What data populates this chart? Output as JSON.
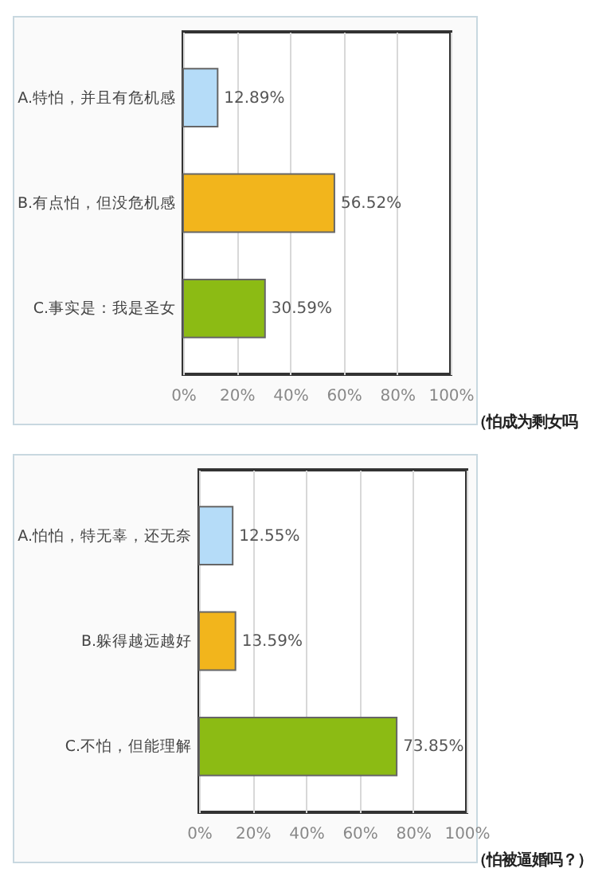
{
  "chart_data": [
    {
      "type": "bar",
      "orientation": "horizontal",
      "categories": [
        "A.特怕，并且有危机感",
        "B.有点怕，但没危机感",
        "C.事实是：我是圣女"
      ],
      "values": [
        12.89,
        56.52,
        30.59
      ],
      "colors": [
        "#b5dcf8",
        "#f2b51c",
        "#8cbb14"
      ],
      "value_labels": [
        "12.89%",
        "56.52%",
        "30.59%"
      ],
      "xlim": [
        0,
        100
      ],
      "xticks": [
        {
          "value": 0,
          "label": "0%"
        },
        {
          "value": 20,
          "label": "20%"
        },
        {
          "value": 40,
          "label": "40%"
        },
        {
          "value": 60,
          "label": "60%"
        },
        {
          "value": 80,
          "label": "80%"
        },
        {
          "value": 100,
          "label": "100%"
        }
      ],
      "grid": "x",
      "annotations": [
        "（怕成为剩女吗"
      ]
    },
    {
      "type": "bar",
      "orientation": "horizontal",
      "categories": [
        "A.怕怕，特无辜，还无奈",
        "B.躲得越远越好",
        "C.不怕，但能理解"
      ],
      "values": [
        12.55,
        13.59,
        73.85
      ],
      "colors": [
        "#b5dcf8",
        "#f2b51c",
        "#8cbb14"
      ],
      "value_labels": [
        "12.55%",
        "13.59%",
        "73.85%"
      ],
      "xlim": [
        0,
        100
      ],
      "xticks": [
        {
          "value": 0,
          "label": "0%"
        },
        {
          "value": 20,
          "label": "20%"
        },
        {
          "value": 40,
          "label": "40%"
        },
        {
          "value": 60,
          "label": "60%"
        },
        {
          "value": 80,
          "label": "80%"
        },
        {
          "value": 100,
          "label": "100%"
        }
      ],
      "grid": "x",
      "annotations": [
        "（怕被逼婚吗？）"
      ]
    }
  ]
}
